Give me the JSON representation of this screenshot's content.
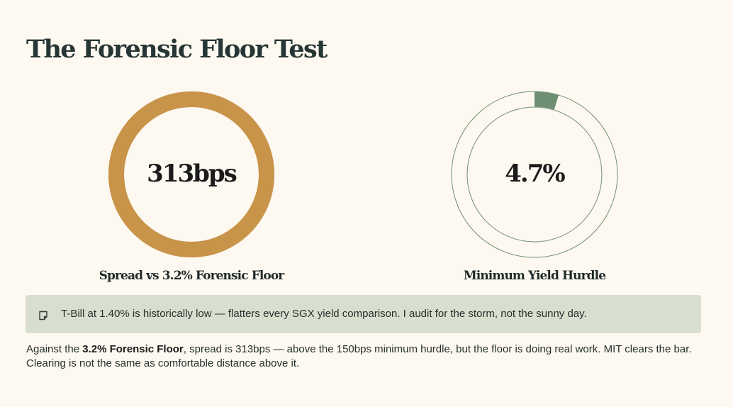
{
  "title": "The Forensic Floor Test",
  "colors": {
    "background": "#fdf8f0",
    "spread_ring": "#c8944a",
    "hurdle_accent": "#6f8f73",
    "hurdle_outline": "#6f8f73",
    "callout_bg": "#d9dfcf"
  },
  "chart_data": [
    {
      "type": "gauge",
      "value_text": "313bps",
      "label": "Spread vs 3.2% Forensic Floor",
      "value": 313,
      "unit": "bps",
      "fill_fraction": 1.0
    },
    {
      "type": "gauge",
      "value_text": "4.7%",
      "label": "Minimum Yield Hurdle",
      "value": 4.7,
      "unit": "%",
      "fill_fraction": 0.047
    }
  ],
  "callout": {
    "icon": "note-icon",
    "text": "T-Bill at 1.40% is historically low — flatters every SGX yield comparison. I audit for the storm, not the sunny day."
  },
  "summary": {
    "prefix": "Against the ",
    "emphasis": "3.2% Forensic Floor",
    "suffix": ", spread is 313bps — above the 150bps minimum hurdle, but the floor is doing real work. MIT clears the bar. Clearing is not the same as comfortable distance above it."
  }
}
